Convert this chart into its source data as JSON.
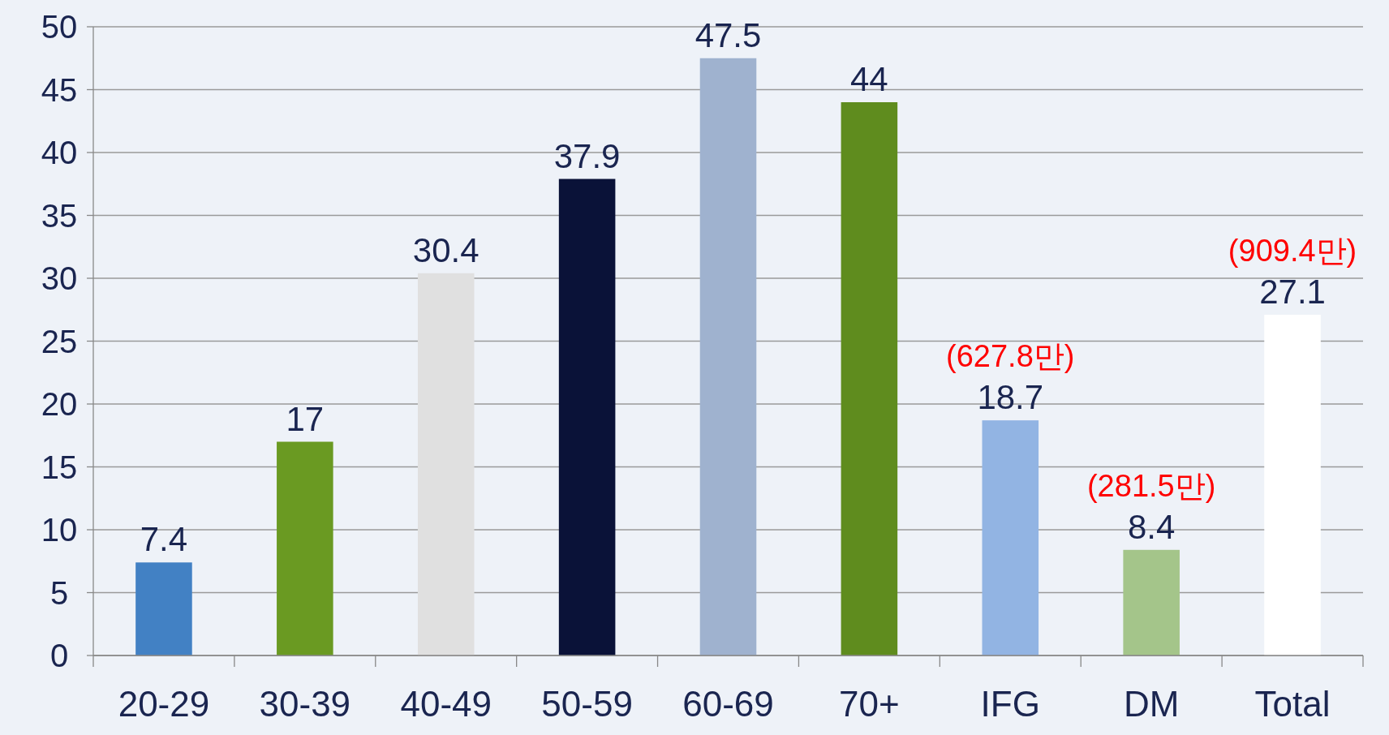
{
  "chart_data": {
    "type": "bar",
    "categories": [
      "20-29",
      "30-39",
      "40-49",
      "50-59",
      "60-69",
      "70+",
      "IFG",
      "DM",
      "Total"
    ],
    "values": [
      7.4,
      17,
      30.4,
      37.9,
      47.5,
      44,
      18.7,
      8.4,
      27.1
    ],
    "colors": [
      "#4281c4",
      "#6a9a22",
      "#e0e0e0",
      "#0a1238",
      "#9fb2cf",
      "#5f8c1e",
      "#92b4e3",
      "#a4c58a",
      "#ffffff"
    ],
    "ylim": [
      0,
      50
    ],
    "yticks": [
      0,
      5,
      10,
      15,
      20,
      25,
      30,
      35,
      40,
      45,
      50
    ],
    "grid": "y",
    "data_labels": true,
    "annotations": [
      {
        "text": "(627.8만)",
        "x": "IFG",
        "y": 18.7
      },
      {
        "text": "(281.5만)",
        "x": "DM",
        "y": 8.4
      },
      {
        "text": "(909.4만)",
        "x": "Total",
        "y": 27.1
      }
    ]
  }
}
